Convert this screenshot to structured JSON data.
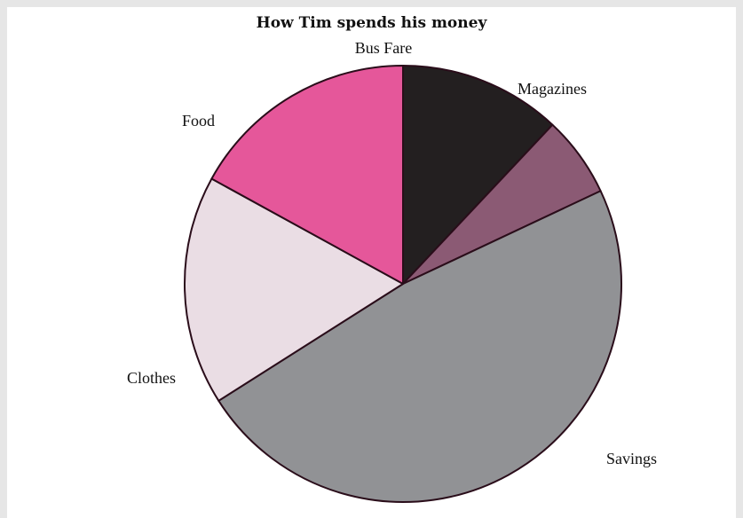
{
  "chart_data": {
    "type": "pie",
    "title": "How Tim spends his money",
    "slices": [
      {
        "label": "Bus Fare",
        "value": 12,
        "color": "#231f20"
      },
      {
        "label": "Magazines",
        "value": 6,
        "color": "#8b5a74"
      },
      {
        "label": "Savings",
        "value": 48,
        "color": "#919295"
      },
      {
        "label": "Clothes",
        "value": 17,
        "color": "#eadde4"
      },
      {
        "label": "Food",
        "value": 17,
        "color": "#e5579a"
      }
    ],
    "start": "top",
    "direction": "clockwise",
    "slice_edge_color": "#2a0d1a",
    "legend": "none"
  }
}
